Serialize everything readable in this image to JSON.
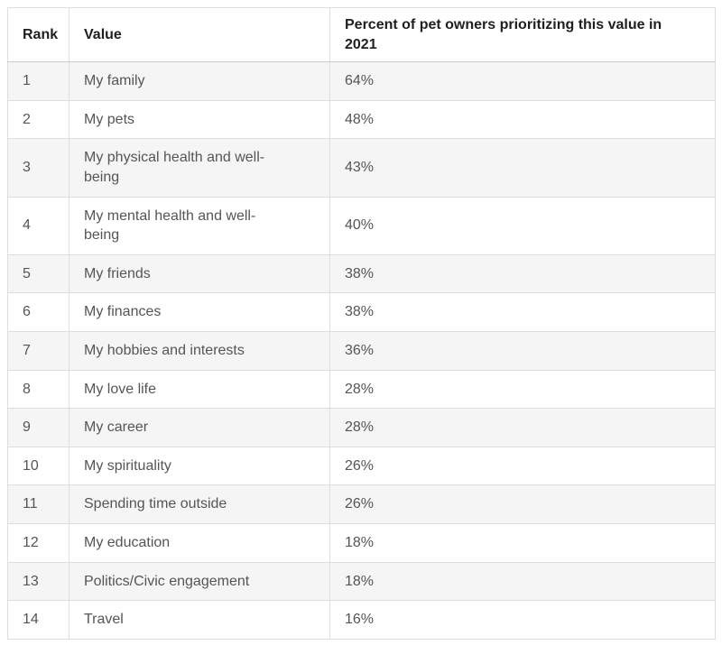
{
  "colors": {
    "row_alt_bg": "#f5f5f5",
    "row_bg": "#ffffff",
    "grid_border": "#dedede",
    "header_rule": "#c9c9c9",
    "header_text": "#1f1f1f",
    "body_text": "#555555"
  },
  "table": {
    "columns": [
      "Rank",
      "Value",
      "Percent of pet owners prioritizing this value in 2021"
    ],
    "rows": [
      {
        "rank": "1",
        "value": "My family",
        "percent": "64%"
      },
      {
        "rank": "2",
        "value": "My pets",
        "percent": "48%"
      },
      {
        "rank": "3",
        "value": "My physical health and well-being",
        "percent": "43%"
      },
      {
        "rank": "4",
        "value": "My mental health and well-being",
        "percent": "40%"
      },
      {
        "rank": "5",
        "value": "My friends",
        "percent": "38%"
      },
      {
        "rank": "6",
        "value": "My finances",
        "percent": "38%"
      },
      {
        "rank": "7",
        "value": "My hobbies and interests",
        "percent": "36%"
      },
      {
        "rank": "8",
        "value": "My love life",
        "percent": "28%"
      },
      {
        "rank": "9",
        "value": "My career",
        "percent": "28%"
      },
      {
        "rank": "10",
        "value": "My spirituality",
        "percent": "26%"
      },
      {
        "rank": "11",
        "value": "Spending time outside",
        "percent": "26%"
      },
      {
        "rank": "12",
        "value": "My education",
        "percent": "18%"
      },
      {
        "rank": "13",
        "value": "Politics/Civic engagement",
        "percent": "18%"
      },
      {
        "rank": "14",
        "value": "Travel",
        "percent": "16%"
      }
    ]
  },
  "chart_data": {
    "type": "table",
    "title": "Percent of pet owners prioritizing this value in 2021",
    "columns": [
      "Rank",
      "Value",
      "Percent of pet owners prioritizing this value in 2021"
    ],
    "categories": [
      "My family",
      "My pets",
      "My physical health and well-being",
      "My mental health and well-being",
      "My friends",
      "My finances",
      "My hobbies and interests",
      "My love life",
      "My career",
      "My spirituality",
      "Spending time outside",
      "My education",
      "Politics/Civic engagement",
      "Travel"
    ],
    "values_percent": [
      64,
      48,
      43,
      40,
      38,
      38,
      36,
      28,
      28,
      26,
      26,
      18,
      18,
      16
    ],
    "ranks": [
      1,
      2,
      3,
      4,
      5,
      6,
      7,
      8,
      9,
      10,
      11,
      12,
      13,
      14
    ]
  }
}
